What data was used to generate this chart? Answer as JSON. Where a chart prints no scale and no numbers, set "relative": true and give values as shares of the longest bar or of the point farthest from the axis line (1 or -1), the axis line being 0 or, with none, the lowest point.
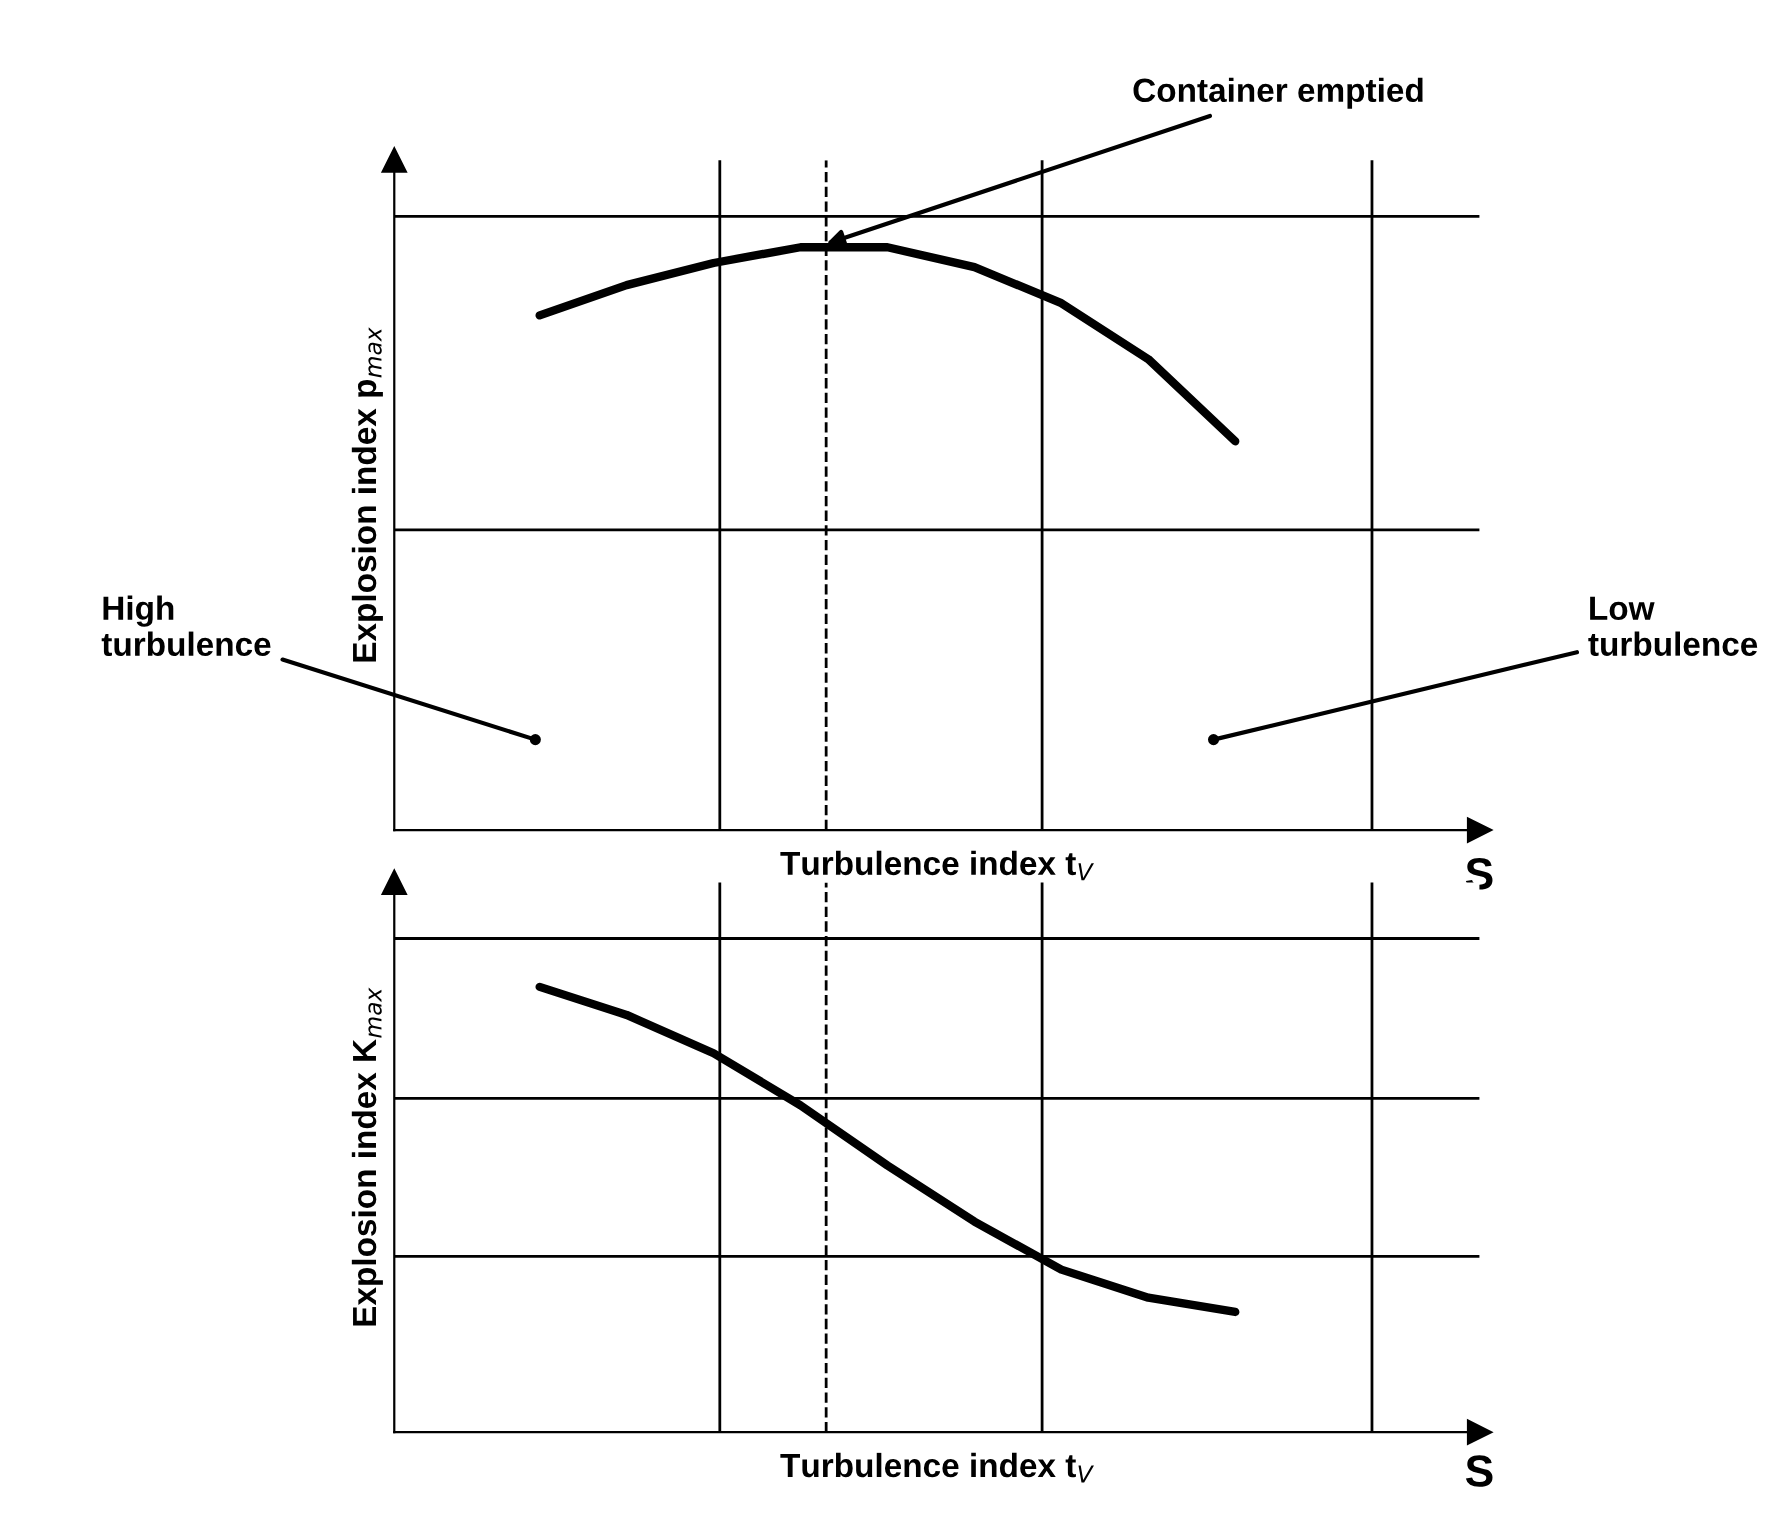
{
  "chart_data": [
    {
      "type": "line",
      "relative": true,
      "xlabel": "Turbulence index t$_{V}$",
      "ylabel": "Explosion index p$_{max}$",
      "categories": [
        null,
        null,
        null,
        null,
        null,
        null,
        null,
        null,
        null
      ],
      "series": [
        {
          "color": "#000000",
          "values": [
            0.883,
            0.935,
            0.973,
            1,
            1,
            0.966,
            0.904,
            0.808,
            0.667
          ]
        }
      ],
      "grid": true,
      "marker": "none",
      "line_style": "solid",
      "annotations": [
        "Container emptied",
        "High\nturbulence",
        "Low\nturbulence",
        "S"
      ]
    },
    {
      "type": "line",
      "relative": true,
      "xlabel": "Turbulence index t$_{V}$",
      "ylabel": "Explosion index K$_{max}$",
      "categories": [
        null,
        null,
        null,
        null,
        null,
        null,
        null,
        null,
        null
      ],
      "series": [
        {
          "color": "#000000",
          "values": [
            1,
            0.937,
            0.851,
            0.734,
            0.599,
            0.473,
            0.365,
            0.302,
            0.27
          ]
        }
      ],
      "grid": true,
      "marker": "none",
      "line_style": "solid",
      "annotations": [
        "S"
      ]
    }
  ]
}
